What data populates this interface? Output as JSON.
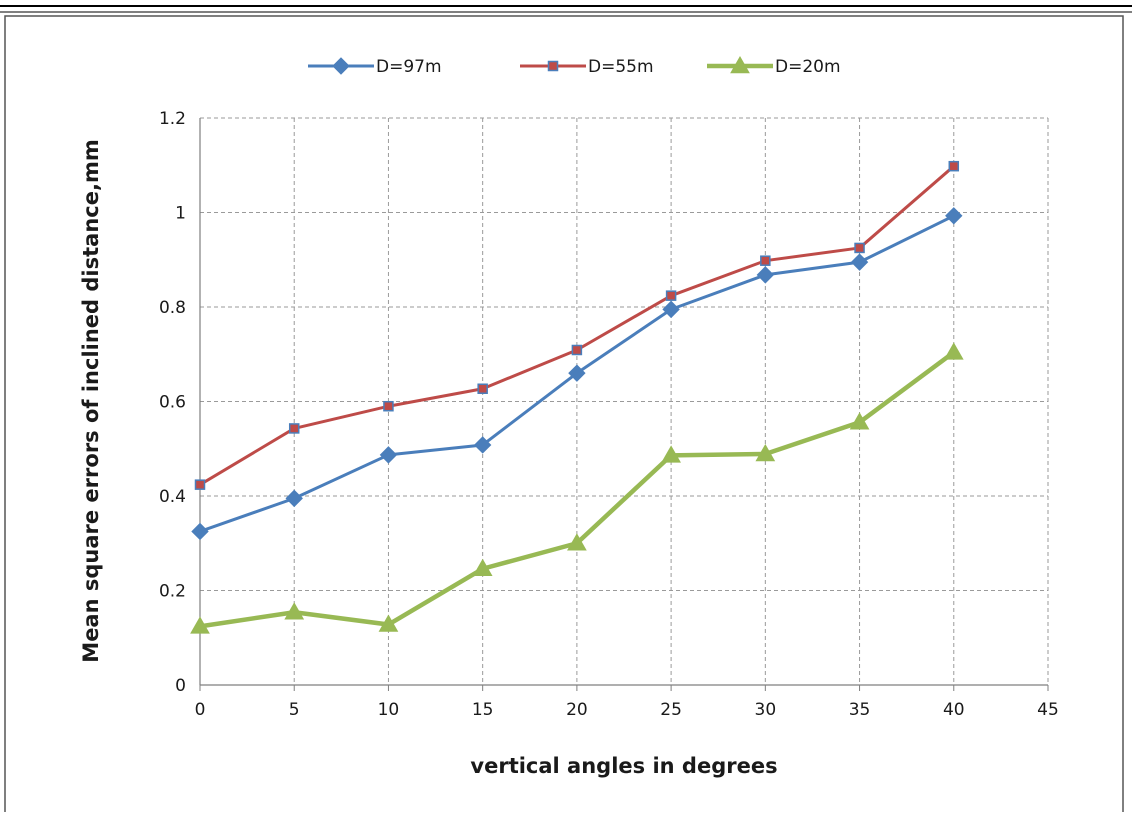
{
  "chart_data": {
    "type": "line",
    "title": "",
    "xlabel": "vertical angles in degrees",
    "ylabel": "Mean square errors of inclined distance,mm",
    "xlim": [
      0,
      45
    ],
    "ylim": [
      0,
      1.2
    ],
    "x_ticks": [
      "0",
      "5",
      "10",
      "15",
      "20",
      "25",
      "30",
      "35",
      "40",
      "45"
    ],
    "y_ticks": [
      "0",
      "0.2",
      "0.4",
      "0.6",
      "0.8",
      "1",
      "1.2"
    ],
    "grid": true,
    "legend_position": "top",
    "x": [
      0,
      5,
      10,
      15,
      20,
      25,
      30,
      35,
      40
    ],
    "series": [
      {
        "name": "D=97m",
        "color": "#4a7ebb",
        "marker": "diamond",
        "values": [
          0.325,
          0.395,
          0.487,
          0.508,
          0.66,
          0.795,
          0.868,
          0.895,
          0.993
        ]
      },
      {
        "name": "D=55m",
        "color": "#be4b48",
        "marker": "square",
        "values": [
          0.424,
          0.543,
          0.59,
          0.627,
          0.709,
          0.824,
          0.898,
          0.925,
          1.098
        ]
      },
      {
        "name": "D=20m",
        "color": "#98b954",
        "marker": "triangle",
        "values": [
          0.124,
          0.154,
          0.128,
          0.246,
          0.3,
          0.486,
          0.489,
          0.556,
          0.704
        ]
      }
    ]
  }
}
